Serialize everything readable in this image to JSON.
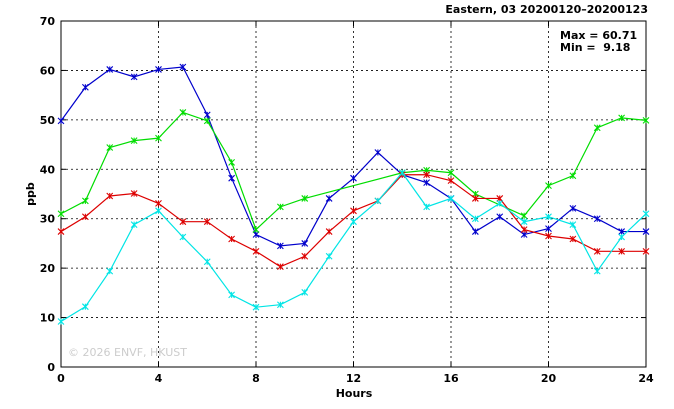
{
  "chart_data": {
    "type": "line",
    "title": "Eastern, 03 20200120–20200123",
    "xlabel": "Hours",
    "ylabel": "ppb",
    "xlim": [
      0,
      24
    ],
    "ylim": [
      0,
      70
    ],
    "xticks": [
      0,
      4,
      8,
      12,
      16,
      20,
      24
    ],
    "yticks": [
      0,
      10,
      20,
      30,
      40,
      50,
      60,
      70
    ],
    "grid": true,
    "stats": {
      "max_label": "Max = 60.71",
      "min_label": "Min =  9.18"
    },
    "watermark": "© 2026  ENVF, HKUST",
    "x": [
      0,
      1,
      2,
      3,
      4,
      5,
      6,
      7,
      8,
      9,
      10,
      11,
      12,
      13,
      14,
      15,
      16,
      17,
      18,
      19,
      20,
      21,
      22,
      23,
      24
    ],
    "series": [
      {
        "color": "#0000cc",
        "values": [
          49.8,
          56.6,
          60.2,
          58.7,
          60.2,
          60.7,
          51.0,
          38.2,
          26.8,
          24.5,
          25.0,
          34.1,
          38.2,
          43.4,
          38.9,
          37.3,
          34.1,
          27.4,
          30.4,
          26.8,
          28.0,
          32.1,
          30.0,
          27.4,
          27.4
        ]
      },
      {
        "color": "#00dd00",
        "values": [
          31.0,
          33.6,
          44.4,
          45.8,
          46.3,
          51.5,
          49.8,
          41.4,
          27.8,
          32.4,
          34.1,
          null,
          null,
          null,
          39.3,
          39.8,
          39.3,
          35.0,
          null,
          30.6,
          36.7,
          38.7,
          48.4,
          50.4,
          49.9
        ]
      },
      {
        "color": "#dd0000",
        "values": [
          27.4,
          30.4,
          34.6,
          35.1,
          33.1,
          29.4,
          29.4,
          25.9,
          23.4,
          20.3,
          22.4,
          27.4,
          31.6,
          33.6,
          38.9,
          38.9,
          37.7,
          34.1,
          34.1,
          27.8,
          26.5,
          25.9,
          23.4,
          23.4,
          23.4
        ]
      },
      {
        "color": "#00e5e5",
        "values": [
          9.2,
          12.2,
          19.4,
          28.8,
          31.6,
          26.3,
          21.3,
          14.6,
          12.1,
          12.6,
          15.1,
          22.4,
          29.4,
          33.6,
          39.3,
          32.4,
          34.1,
          30.0,
          33.1,
          29.4,
          30.4,
          28.8,
          19.4,
          26.3,
          31.0
        ]
      }
    ]
  }
}
